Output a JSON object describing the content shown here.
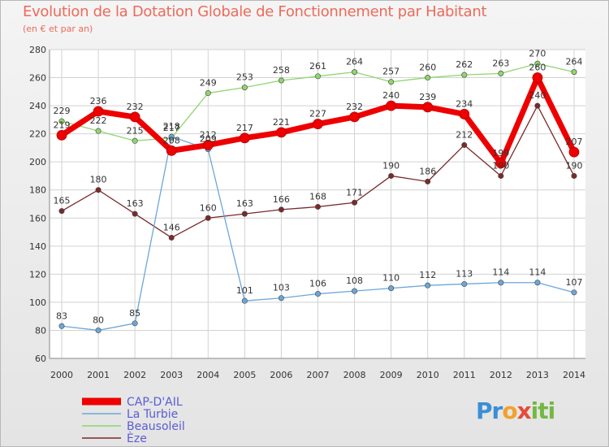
{
  "header": {
    "title": "Evolution de la Dotation Globale de Fonctionnement par Habitant",
    "subtitle": "(en € et par an)"
  },
  "logo": {
    "text": "Proxiti",
    "parts": [
      "Pr",
      "o",
      "x",
      "iti"
    ]
  },
  "chart_data": {
    "type": "line",
    "title": "Evolution de la Dotation Globale de Fonctionnement par Habitant",
    "subtitle": "(en € et par an)",
    "xlabel": "",
    "ylabel": "",
    "ylim": [
      60,
      280
    ],
    "yticks": [
      60,
      80,
      100,
      120,
      140,
      160,
      180,
      200,
      220,
      240,
      260,
      280
    ],
    "x": [
      "2000",
      "2001",
      "2002",
      "2003",
      "2004",
      "2005",
      "2006",
      "2007",
      "2008",
      "2009",
      "2010",
      "2011",
      "2012",
      "2013",
      "2014"
    ],
    "grid": true,
    "legend_position": "bottom-left",
    "series": [
      {
        "name": "CAP-D'AIL",
        "color": "#ee0000",
        "values": [
          219,
          236,
          232,
          208,
          212,
          217,
          221,
          227,
          232,
          240,
          239,
          234,
          199,
          260,
          207
        ]
      },
      {
        "name": "La Turbie",
        "color": "#6da6d8",
        "values": [
          83,
          80,
          85,
          218,
          209,
          101,
          103,
          106,
          108,
          110,
          112,
          113,
          114,
          114,
          107
        ]
      },
      {
        "name": "Beausoleil",
        "color": "#8fd66e",
        "values": [
          229,
          222,
          215,
          217,
          249,
          253,
          258,
          261,
          264,
          257,
          260,
          262,
          263,
          270,
          264
        ]
      },
      {
        "name": "Èze",
        "color": "#7a2a2a",
        "values": [
          165,
          180,
          163,
          146,
          160,
          163,
          166,
          168,
          171,
          190,
          186,
          212,
          190,
          240,
          190
        ]
      }
    ]
  }
}
